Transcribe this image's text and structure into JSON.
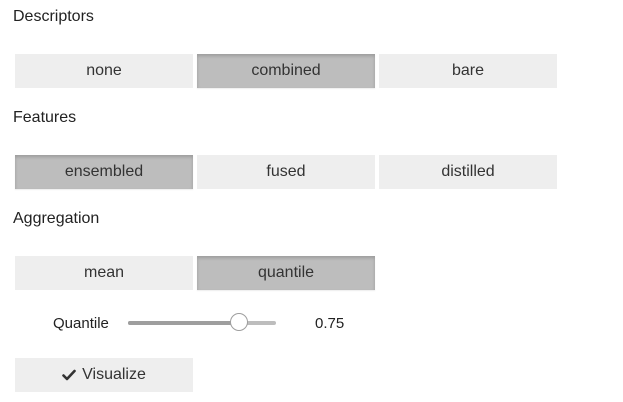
{
  "descriptors": {
    "label": "Descriptors",
    "options": [
      "none",
      "combined",
      "bare"
    ],
    "selected": "combined"
  },
  "features": {
    "label": "Features",
    "options": [
      "ensembled",
      "fused",
      "distilled"
    ],
    "selected": "ensembled"
  },
  "aggregation": {
    "label": "Aggregation",
    "options": [
      "mean",
      "quantile"
    ],
    "selected": "quantile"
  },
  "quantile_slider": {
    "label": "Quantile",
    "value_text": "0.75",
    "fraction": 0.75
  },
  "visualize": {
    "label": "Visualize",
    "icon": "check-icon"
  },
  "colors": {
    "button_bg": "#eeeeee",
    "button_active_bg": "#bdbdbd"
  }
}
